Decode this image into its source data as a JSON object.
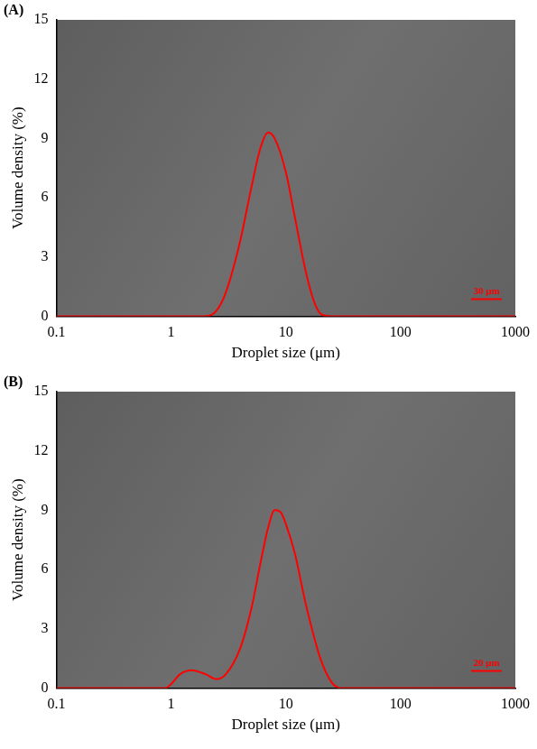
{
  "chart_data": [
    {
      "type": "line",
      "title": "(A)",
      "x_label": "Droplet size (μm)",
      "y_label": "Volume density (%)",
      "annotations": [
        "30 μm"
      ],
      "x": [
        0.1,
        1,
        2,
        2.5,
        3,
        4,
        5,
        6,
        7,
        8,
        10,
        12,
        15,
        18,
        21,
        25,
        100,
        1000
      ],
      "values": [
        0,
        0,
        0,
        0.3,
        1.2,
        3.8,
        6.5,
        8.5,
        9.3,
        9.0,
        7.3,
        5.0,
        2.2,
        0.6,
        0.05,
        0,
        0,
        0
      ],
      "color": "#ff0000",
      "log": "x",
      "xlim": [
        0.1,
        1000
      ],
      "xticks": [
        0.1,
        1,
        10,
        100,
        1000
      ],
      "ylim": [
        0,
        15
      ],
      "yticks": [
        0,
        3,
        6,
        9,
        12,
        15
      ],
      "grid": false
    },
    {
      "type": "line",
      "title": "(B)",
      "x_label": "Droplet size (μm)",
      "y_label": "Volume density (%)",
      "annotations": [
        "20 μm"
      ],
      "x": [
        0.1,
        0.9,
        1.0,
        1.2,
        1.5,
        2,
        2.5,
        3,
        4,
        5,
        6,
        7,
        8,
        9,
        10,
        12,
        15,
        20,
        25,
        30,
        100,
        1000
      ],
      "values": [
        0,
        0,
        0.2,
        0.7,
        0.9,
        0.7,
        0.45,
        0.7,
        2.0,
        4.0,
        6.3,
        8.1,
        9.0,
        8.9,
        8.3,
        6.8,
        4.2,
        1.5,
        0.3,
        0,
        0,
        0
      ],
      "color": "#ff0000",
      "log": "x",
      "xlim": [
        0.1,
        1000
      ],
      "xticks": [
        0.1,
        1,
        10,
        100,
        1000
      ],
      "ylim": [
        0,
        15
      ],
      "yticks": [
        0,
        3,
        6,
        9,
        12,
        15
      ],
      "grid": false
    }
  ]
}
